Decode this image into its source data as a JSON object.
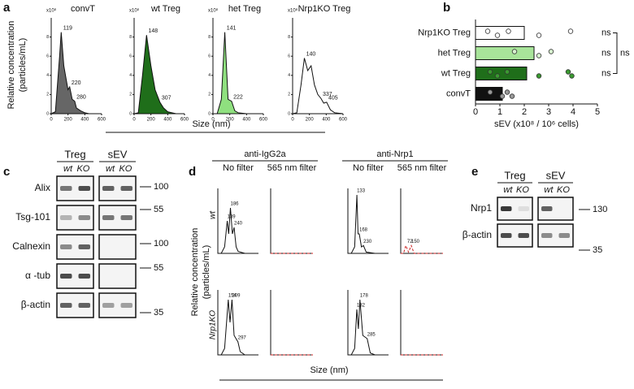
{
  "panel_labels": [
    "a",
    "b",
    "c",
    "d",
    "e"
  ],
  "a_ylabel": [
    "Relative concentration",
    "(particles/mL)"
  ],
  "a_xlabel": "Size (nm)",
  "d_ylabel": [
    "Relative concentration",
    "(particles/mL)"
  ],
  "d_xlabel": "Size (nm)",
  "d_groups": [
    {
      "title": "anti-IgG2a",
      "conditions": [
        "No filter",
        "565 nm filter"
      ]
    },
    {
      "title": "anti-Nrp1",
      "conditions": [
        "No filter",
        "565 nm filter"
      ]
    }
  ],
  "d_rows": [
    "wt",
    "Nrp1KO"
  ],
  "chart_data": [
    {
      "type": "area",
      "title": "convT",
      "color": "#666666",
      "y_unit": "x10⁸",
      "x": [
        0,
        50,
        100,
        119,
        150,
        200,
        220,
        250,
        280,
        300,
        350,
        400,
        450,
        500,
        600
      ],
      "values": [
        0,
        0.2,
        6,
        8.5,
        5,
        2.5,
        2.8,
        1.5,
        1.3,
        0.6,
        0.3,
        0.1,
        0,
        0,
        0
      ],
      "peaks": [
        {
          "x": 119,
          "y": 8.5
        },
        {
          "x": 220,
          "y": 2.8
        },
        {
          "x": 280,
          "y": 1.3
        }
      ],
      "xlim": [
        0,
        600
      ],
      "xticks": [
        0,
        200,
        400,
        600
      ],
      "ylim": [
        0,
        10
      ],
      "yticks": [
        0,
        2,
        4,
        6,
        8
      ]
    },
    {
      "type": "area",
      "title": "wt Treg",
      "color": "#1f6e1a",
      "y_unit": "x10⁸",
      "x": [
        0,
        50,
        100,
        148,
        200,
        250,
        307,
        350,
        400,
        450,
        500,
        600
      ],
      "values": [
        0,
        0.1,
        4,
        8.2,
        5,
        2.5,
        1.2,
        0.6,
        0.2,
        0.1,
        0,
        0
      ],
      "peaks": [
        {
          "x": 148,
          "y": 8.2
        },
        {
          "x": 307,
          "y": 1.2
        }
      ],
      "xlim": [
        0,
        600
      ],
      "xticks": [
        0,
        200,
        400,
        600
      ],
      "ylim": [
        0,
        10
      ],
      "yticks": [
        0,
        2,
        4,
        6,
        8
      ]
    },
    {
      "type": "area",
      "title": "het Treg",
      "color": "#8fe07f",
      "y_unit": "x10⁸",
      "x": [
        0,
        50,
        100,
        141,
        180,
        222,
        260,
        300,
        400,
        600
      ],
      "values": [
        0,
        0,
        1.5,
        8.5,
        1.5,
        1.3,
        0.3,
        0.1,
        0,
        0
      ],
      "peaks": [
        {
          "x": 141,
          "y": 8.5
        },
        {
          "x": 222,
          "y": 1.3
        }
      ],
      "xlim": [
        0,
        600
      ],
      "xticks": [
        0,
        200,
        400,
        600
      ],
      "ylim": [
        0,
        10
      ],
      "yticks": [
        0,
        2,
        4,
        6,
        8
      ]
    },
    {
      "type": "area",
      "title": "Nrp1KO Treg",
      "color": "#ffffff",
      "y_unit": "x10⁸",
      "x": [
        0,
        50,
        100,
        140,
        180,
        220,
        260,
        300,
        337,
        370,
        405,
        450,
        500,
        600
      ],
      "values": [
        0,
        0.1,
        3,
        5.8,
        4.5,
        5,
        3,
        2,
        1.6,
        1.1,
        1.2,
        0.4,
        0.1,
        0
      ],
      "peaks": [
        {
          "x": 140,
          "y": 5.8
        },
        {
          "x": 337,
          "y": 1.6
        },
        {
          "x": 405,
          "y": 1.2
        }
      ],
      "xlim": [
        0,
        600
      ],
      "xticks": [
        0,
        200,
        400,
        600
      ],
      "ylim": [
        0,
        10
      ],
      "yticks": [
        0,
        2,
        4,
        6,
        8
      ]
    },
    {
      "type": "hbar",
      "categories": [
        "Nrp1KO Treg",
        "het Treg",
        "wt Treg",
        "convT"
      ],
      "values": [
        2.0,
        2.4,
        2.1,
        1.1
      ],
      "colors": [
        "#ffffff",
        "#a8e49a",
        "#1f6e1a",
        "#111111"
      ],
      "point_colors": [
        "#ffffff",
        "#d8f2d0",
        "#3a9a30",
        "#999999"
      ],
      "points": [
        [
          0.5,
          0.9,
          1.35,
          2.6,
          3.9
        ],
        [
          1.6,
          2.6,
          3.1
        ],
        [
          0.6,
          0.9,
          1.3,
          2.6,
          3.8,
          3.95
        ],
        [
          0.6,
          1.1,
          1.3,
          1.5
        ]
      ],
      "annotations": [
        "ns",
        "ns",
        "ns"
      ],
      "bracket_label": "ns",
      "xlabel": "sEV (x10⁸ / 10⁶ cells)",
      "xlim": [
        0,
        5
      ],
      "xticks": [
        0,
        1,
        2,
        3,
        4,
        5
      ]
    },
    {
      "type": "line",
      "color": "#111111",
      "x": [
        0,
        50,
        100,
        139,
        160,
        186,
        215,
        240,
        270,
        300,
        400,
        600
      ],
      "values": [
        0,
        0,
        1,
        5,
        3,
        7,
        3,
        4,
        1,
        0.3,
        0,
        0
      ],
      "peaks": [
        {
          "x": 139,
          "y": 5
        },
        {
          "x": 186,
          "y": 7
        },
        {
          "x": 240,
          "y": 4
        }
      ],
      "xlim": [
        0,
        600
      ],
      "ylim": [
        0,
        10
      ]
    },
    {
      "type": "line",
      "color": "#cc2222",
      "dashed": true,
      "x": [
        0,
        600
      ],
      "values": [
        0,
        0
      ],
      "peaks": [],
      "xlim": [
        0,
        600
      ],
      "ylim": [
        0,
        10
      ]
    },
    {
      "type": "line",
      "color": "#111111",
      "x": [
        0,
        50,
        100,
        133,
        150,
        168,
        200,
        230,
        270,
        400,
        600
      ],
      "values": [
        0,
        0,
        1,
        9,
        3,
        3,
        1,
        1.2,
        0.2,
        0,
        0
      ],
      "peaks": [
        {
          "x": 133,
          "y": 9
        },
        {
          "x": 168,
          "y": 3
        },
        {
          "x": 230,
          "y": 1.2
        }
      ],
      "xlim": [
        0,
        600
      ],
      "ylim": [
        0,
        10
      ]
    },
    {
      "type": "line",
      "color": "#cc2222",
      "dashed": true,
      "x": [
        0,
        40,
        72,
        110,
        150,
        190,
        600
      ],
      "values": [
        0,
        0,
        1.2,
        0.2,
        1.2,
        0,
        0
      ],
      "peaks": [
        {
          "x": 72,
          "y": 1.2
        },
        {
          "x": 150,
          "y": 1.2
        }
      ],
      "xlim": [
        0,
        600
      ],
      "ylim": [
        0,
        10
      ]
    },
    {
      "type": "line",
      "color": "#111111",
      "x": [
        0,
        50,
        100,
        154,
        180,
        209,
        240,
        297,
        330,
        400,
        600
      ],
      "values": [
        0,
        0,
        1,
        8.5,
        5,
        8.5,
        3,
        2,
        0.5,
        0,
        0
      ],
      "peaks": [
        {
          "x": 154,
          "y": 8.5
        },
        {
          "x": 209,
          "y": 8.5
        },
        {
          "x": 297,
          "y": 2
        }
      ],
      "xlim": [
        0,
        600
      ],
      "ylim": [
        0,
        10
      ]
    },
    {
      "type": "line",
      "color": "#cc2222",
      "dashed": true,
      "x": [
        0,
        600
      ],
      "values": [
        0,
        0
      ],
      "peaks": [],
      "xlim": [
        0,
        600
      ],
      "ylim": [
        0,
        10
      ]
    },
    {
      "type": "line",
      "color": "#111111",
      "x": [
        0,
        50,
        100,
        132,
        155,
        178,
        220,
        285,
        330,
        400,
        600
      ],
      "values": [
        0,
        0,
        1,
        7,
        4,
        8.5,
        3,
        2.5,
        0.3,
        0,
        0
      ],
      "peaks": [
        {
          "x": 132,
          "y": 7
        },
        {
          "x": 178,
          "y": 8.5
        },
        {
          "x": 285,
          "y": 2.5
        }
      ],
      "xlim": [
        0,
        600
      ],
      "ylim": [
        0,
        10
      ]
    },
    {
      "type": "line",
      "color": "#cc2222",
      "dashed": true,
      "x": [
        0,
        600
      ],
      "values": [
        0,
        0
      ],
      "peaks": [],
      "xlim": [
        0,
        600
      ],
      "ylim": [
        0,
        10
      ]
    }
  ],
  "blots": {
    "c": {
      "groups": [
        "Treg",
        "sEV"
      ],
      "lanes": [
        "wt",
        "KO"
      ],
      "rows": [
        "Alix",
        "Tsg-101",
        "Calnexin",
        "α -tub",
        "β-actin"
      ],
      "markers": [
        100,
        55,
        100,
        55,
        35
      ]
    },
    "e": {
      "groups": [
        "Treg",
        "sEV"
      ],
      "lanes": [
        "wt",
        "KO"
      ],
      "rows": [
        "Nrp1",
        "β-actin"
      ],
      "markers": [
        130,
        35
      ]
    }
  }
}
